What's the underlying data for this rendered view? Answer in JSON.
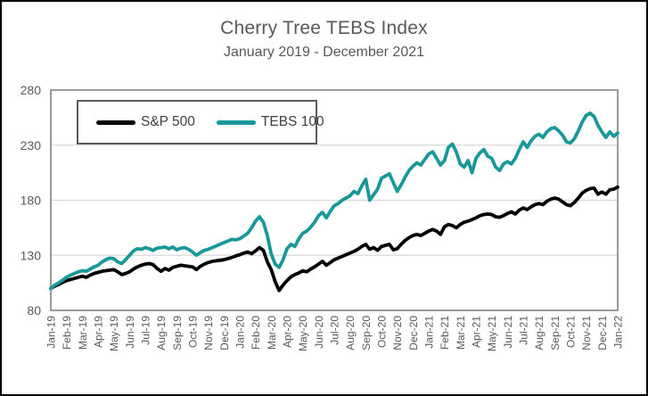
{
  "colors": {
    "sp500": "#000000",
    "tebs": "#18989a",
    "grid": "#d9d9d9",
    "plot_border": "#808080",
    "axis_text": "#595959",
    "title_text": "#595959",
    "legend_text": "#404040",
    "figure_border": "#000000"
  },
  "legend": {
    "series1_label": "S&P 500",
    "series2_label": "TEBS 100"
  },
  "chart_data": {
    "type": "line",
    "title": "Cherry Tree TEBS Index",
    "subtitle": "January 2019 - December 2021",
    "xlabel": "",
    "ylabel": "",
    "ylim": [
      80,
      280
    ],
    "y_ticks": [
      80,
      130,
      180,
      230,
      280
    ],
    "grid": "horizontal",
    "legend_position": "top-left-inside",
    "x_tick_labels": [
      "Jan-19",
      "Feb-19",
      "Mar-19",
      "Apr-19",
      "May-19",
      "Jun-19",
      "Jul-19",
      "Aug-19",
      "Sep-19",
      "Oct-19",
      "Nov-19",
      "Dec-19",
      "Jan-20",
      "Feb-20",
      "Mar-20",
      "Apr-20",
      "May-20",
      "Jun-20",
      "Jul-20",
      "Aug-20",
      "Sep-20",
      "Oct-20",
      "Nov-20",
      "Dec-20",
      "Jan-21",
      "Feb-21",
      "Mar-21",
      "Apr-21",
      "May-21",
      "Jun-21",
      "Jul-21",
      "Aug-21",
      "Sep-21",
      "Oct-21",
      "Nov-21",
      "Dec-21",
      "Jan-22"
    ],
    "points_per_month": 4,
    "series": [
      {
        "name": "S&P 500",
        "color": "#000000",
        "values": [
          100,
          102,
          103.5,
          105.5,
          107,
          108,
          109,
          110,
          111,
          110,
          112,
          113.5,
          114.5,
          115.5,
          116,
          116.5,
          117,
          115,
          112.5,
          113.5,
          115,
          117.5,
          119.5,
          121,
          122,
          122.5,
          121.5,
          118,
          115.5,
          118,
          116.5,
          119,
          120,
          121,
          120.5,
          120,
          119.5,
          117,
          120,
          122,
          123.5,
          124.5,
          125,
          125.5,
          126,
          127,
          128,
          129.5,
          130.5,
          132,
          133,
          131.5,
          134,
          137,
          134.5,
          124,
          117,
          106,
          98,
          103,
          107,
          110.5,
          112.5,
          114,
          116,
          115,
          117.5,
          119.5,
          122,
          124.5,
          121,
          123.5,
          126,
          127.5,
          129,
          130.5,
          132,
          133.5,
          135.5,
          138,
          140,
          135.5,
          137,
          134.5,
          138,
          139,
          140,
          135,
          136,
          140,
          143.5,
          146,
          148,
          149,
          148,
          150,
          152,
          153.5,
          152,
          149,
          156,
          158,
          157,
          155,
          158,
          160,
          161,
          162.5,
          164,
          166,
          167,
          167.5,
          167,
          165,
          164.5,
          166,
          168,
          169.5,
          167.5,
          171,
          173,
          171.5,
          174,
          176,
          177,
          176,
          179,
          181,
          182,
          181,
          178.5,
          176,
          175,
          178,
          182,
          186.5,
          189,
          190.5,
          191,
          185.5,
          187.5,
          185.5,
          189.5,
          190,
          192
        ]
      },
      {
        "name": "TEBS 100",
        "color": "#18989a",
        "values": [
          100,
          103,
          105,
          107.5,
          110,
          112,
          113.5,
          115,
          116,
          115.5,
          117.5,
          119.5,
          121,
          124,
          126,
          127.5,
          127,
          124,
          122.5,
          126,
          130,
          134,
          136,
          135.5,
          137,
          136,
          134.5,
          136.5,
          137,
          137.5,
          136,
          137.5,
          135,
          136.5,
          137,
          135.5,
          133,
          130,
          132.5,
          134.5,
          135.5,
          137,
          138.5,
          140,
          141.5,
          143,
          144.5,
          144,
          145,
          147.5,
          150,
          155,
          161,
          165,
          160,
          148,
          131,
          122,
          119,
          126,
          136,
          140,
          138,
          145,
          150,
          152,
          155.5,
          160,
          166,
          169,
          164,
          170,
          175,
          177,
          180,
          182,
          184,
          188,
          186,
          193,
          199,
          180,
          185,
          190,
          200,
          202,
          204,
          196,
          188,
          194,
          201,
          207,
          211,
          214,
          212,
          217,
          222,
          224,
          218,
          212,
          216,
          228,
          231,
          224,
          213,
          210,
          216,
          205,
          218,
          223,
          226,
          220,
          218,
          210,
          207,
          213,
          215,
          213,
          218,
          226,
          233,
          228,
          234,
          238,
          240,
          237,
          242,
          245,
          246,
          243,
          239,
          233,
          232,
          236,
          243,
          251,
          257,
          259,
          256,
          248,
          242,
          237,
          242,
          238,
          241
        ]
      }
    ]
  }
}
